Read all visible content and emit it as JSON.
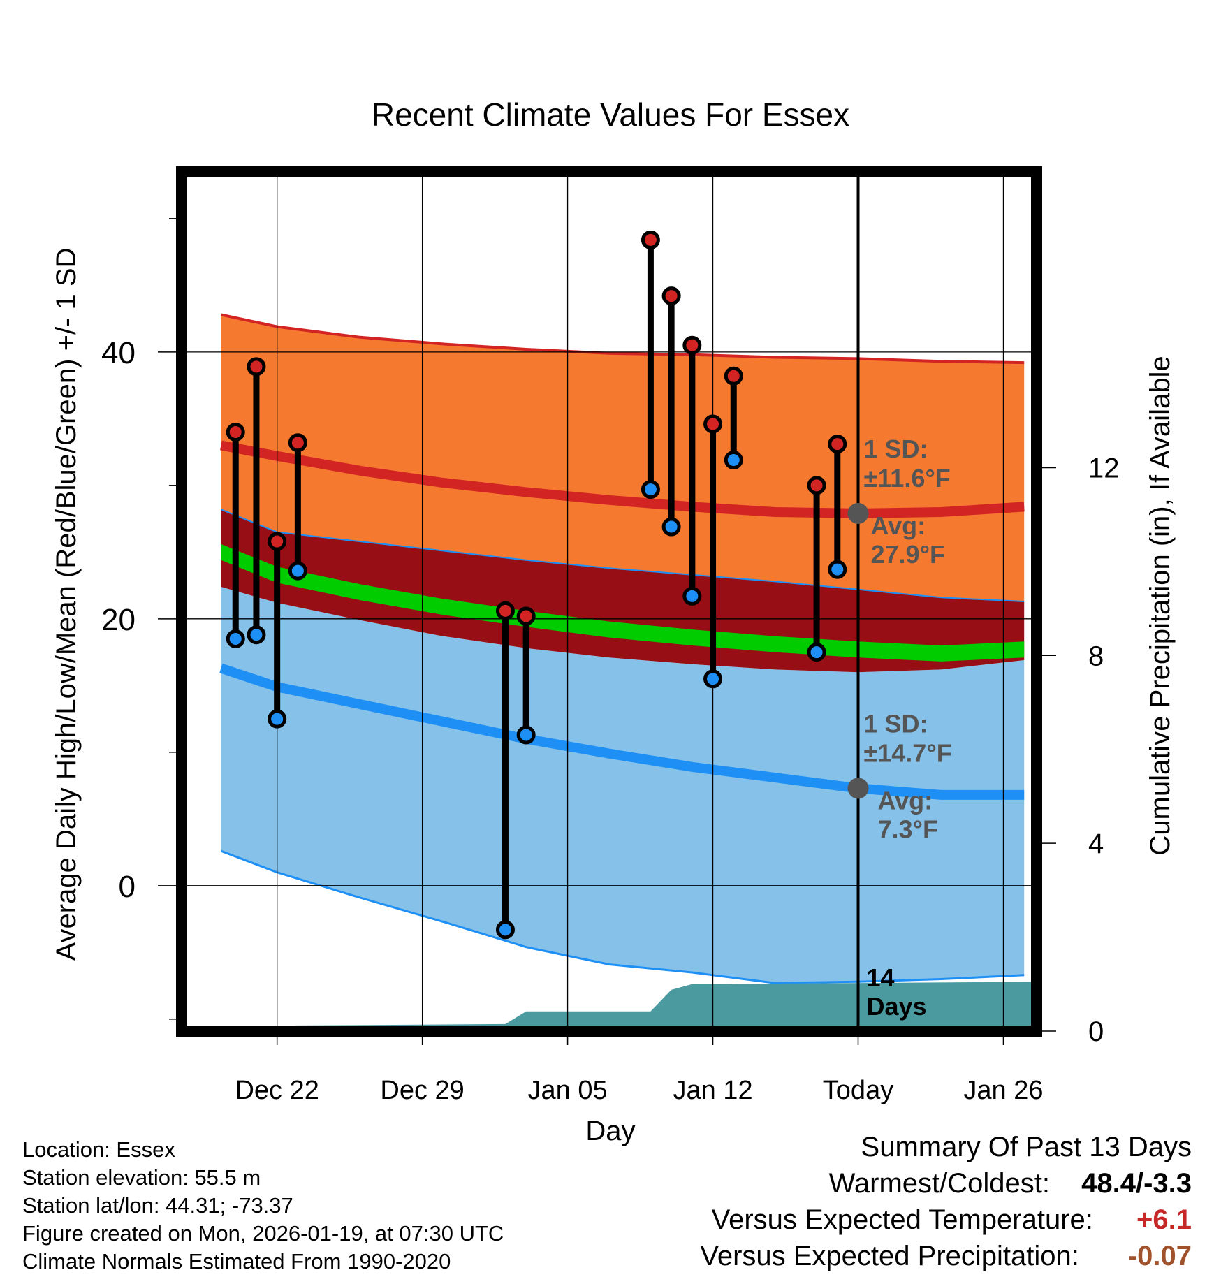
{
  "chart_data": {
    "type": "line",
    "title": "Recent Climate Values For Essex",
    "xlabel": "Day",
    "ylabel_left": "Average Daily High/Low/Mean (Red/Blue/Green) +/- 1 SD",
    "ylabel_right": "Cumulative Precipitation (in), If Available",
    "xlim": [
      -4.6,
      36.6
    ],
    "ylim_left": [
      -10.9,
      53.5
    ],
    "ylim_right": [
      0,
      18.3
    ],
    "x_ticks": [
      {
        "x": 0,
        "label": "Dec 22"
      },
      {
        "x": 7,
        "label": "Dec 29"
      },
      {
        "x": 14,
        "label": "Jan 05"
      },
      {
        "x": 21,
        "label": "Jan 12"
      },
      {
        "x": 28,
        "label": "Today"
      },
      {
        "x": 35,
        "label": "Jan 26"
      }
    ],
    "y_ticks_left": [
      {
        "v": 0,
        "label": "0"
      },
      {
        "v": 20,
        "label": "20"
      },
      {
        "v": 40,
        "label": "40"
      }
    ],
    "y_minor_ticks_left": [
      -10,
      10,
      30,
      50
    ],
    "y_ticks_right": [
      {
        "v": 0,
        "label": "0"
      },
      {
        "v": 4,
        "label": "4"
      },
      {
        "v": 8,
        "label": "8"
      },
      {
        "v": 12,
        "label": "12"
      }
    ],
    "today_x": 28,
    "normals": {
      "x": [
        -2.7,
        0,
        4,
        8,
        12,
        16,
        20,
        24,
        28,
        32,
        36
      ],
      "high_mean": [
        33.0,
        32.2,
        31.1,
        30.2,
        29.5,
        28.9,
        28.4,
        28.0,
        27.9,
        28.0,
        28.4
      ],
      "high_upper": [
        42.8,
        41.9,
        41.1,
        40.6,
        40.2,
        39.9,
        39.8,
        39.6,
        39.5,
        39.3,
        39.2
      ],
      "high_lower": [
        28.2,
        26.5,
        25.8,
        25.1,
        24.4,
        23.8,
        23.3,
        22.8,
        22.2,
        21.6,
        21.3
      ],
      "mean": [
        25.0,
        23.3,
        22.0,
        20.9,
        20.0,
        19.2,
        18.6,
        18.1,
        17.7,
        17.4,
        17.7
      ],
      "mean_upper": [
        25.6,
        23.9,
        22.6,
        21.5,
        20.6,
        19.8,
        19.2,
        18.7,
        18.3,
        18.0,
        18.3
      ],
      "mean_lower": [
        24.4,
        22.7,
        21.4,
        20.3,
        19.4,
        18.6,
        18.0,
        17.5,
        17.1,
        16.8,
        17.1
      ],
      "low_upper": [
        22.4,
        21.2,
        19.9,
        18.7,
        17.8,
        17.1,
        16.6,
        16.2,
        16.0,
        16.2,
        16.9
      ],
      "low_mean": [
        16.3,
        14.9,
        13.6,
        12.3,
        11.0,
        9.9,
        8.9,
        8.1,
        7.3,
        6.8,
        6.8
      ],
      "low_lower": [
        2.6,
        1.0,
        -0.9,
        -2.7,
        -4.6,
        -5.9,
        -6.5,
        -7.3,
        -7.2,
        -7.0,
        -6.7
      ]
    },
    "observations": [
      {
        "day": -2,
        "high": 34.0,
        "low": 18.5
      },
      {
        "day": -1,
        "high": 38.9,
        "low": 18.8
      },
      {
        "day": 0,
        "high": 25.8,
        "low": 12.5
      },
      {
        "day": 1,
        "high": 33.2,
        "low": 23.6
      },
      {
        "day": 11,
        "high": 20.6,
        "low": -3.3
      },
      {
        "day": 12,
        "high": 20.2,
        "low": 11.3
      },
      {
        "day": 18,
        "high": 48.4,
        "low": 29.7
      },
      {
        "day": 19,
        "high": 44.2,
        "low": 26.9
      },
      {
        "day": 20,
        "high": 40.5,
        "low": 21.7
      },
      {
        "day": 21,
        "high": 34.6,
        "low": 15.5
      },
      {
        "day": 22,
        "high": 38.2,
        "low": 31.9
      },
      {
        "day": 26,
        "high": 30.0,
        "low": 17.5
      },
      {
        "day": 27,
        "high": 33.1,
        "low": 23.7
      }
    ],
    "precipitation": {
      "x": [
        -2.7,
        0.9,
        11.0,
        12.0,
        18.0,
        19.0,
        20.0,
        36.6
      ],
      "values": [
        0.02,
        0.12,
        0.15,
        0.42,
        0.42,
        0.88,
        1.0,
        1.05
      ]
    },
    "annotations": {
      "high_sd_label": "1 SD:",
      "high_sd_value": "±11.6°F",
      "high_avg_label": "Avg:",
      "high_avg_value": "27.9°F",
      "high_avg_y": 27.9,
      "low_sd_label": "1 SD:",
      "low_sd_value": "±14.7°F",
      "low_avg_label": "Avg:",
      "low_avg_value": "7.3°F",
      "low_avg_y": 7.3,
      "days_number": "14",
      "days_word": "Days"
    },
    "colors": {
      "high_band": "#f57a30",
      "high_line": "#d32424",
      "mean_band": "#970e14",
      "mean_line": "#00cc00",
      "low_band": "#85c1e8",
      "low_line": "#1e8ff5",
      "precip": "#4a9aa0",
      "high_dot": "#d32424",
      "low_dot": "#1e8ff5",
      "annotation": "#555555"
    }
  },
  "metadata": {
    "location": "Location: Essex",
    "elevation": "Station elevation: 55.5 m",
    "latlon": "Station lat/lon: 44.31; -73.37",
    "created": "Figure created on Mon, 2026-01-19, at 07:30 UTC",
    "normals": "Climate Normals Estimated From 1990-2020"
  },
  "summary": {
    "title": "Summary Of Past 13 Days",
    "warm_cold_label": "Warmest/Coldest:",
    "warm_cold_value": "48.4/-3.3",
    "temp_label": "Versus Expected Temperature:",
    "temp_value": "+6.1",
    "temp_color": "#c62828",
    "precip_label": "Versus Expected Precipitation:",
    "precip_value": "-0.07",
    "precip_color": "#a0522d"
  }
}
